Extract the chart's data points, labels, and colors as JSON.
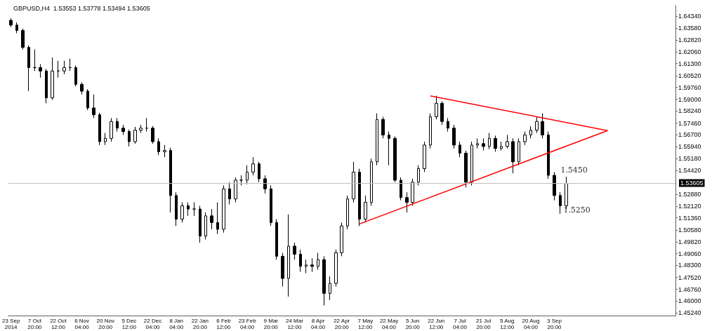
{
  "chart_data": {
    "type": "candlestick",
    "title": "GBPUSD,H4  1.53553 1.53778 1.53494 1.53605",
    "color": "#000000",
    "categories": [
      "23 Sep 2014",
      null,
      null,
      null,
      "7 Oct 20:00",
      null,
      null,
      null,
      "22 Oct 12:00",
      null,
      null,
      null,
      "6 Nov 04:00",
      null,
      null,
      null,
      "20 Nov 20:00",
      null,
      null,
      null,
      "5 Dec 12:00",
      null,
      null,
      null,
      "22 Dec 04:00",
      null,
      null,
      null,
      "8 Jan 04:00",
      null,
      null,
      null,
      "22 Jan 20:00",
      null,
      null,
      null,
      "6 Feb 12:00",
      null,
      null,
      null,
      "23 Feb 04:00",
      null,
      null,
      null,
      "9 Mar 20:00",
      null,
      null,
      null,
      "24 Mar 12:00",
      null,
      null,
      null,
      "8 Apr 04:00",
      null,
      null,
      null,
      "22 Apr 20:00",
      null,
      null,
      null,
      "7 May 12:00",
      null,
      null,
      null,
      "22 May 04:00",
      null,
      null,
      null,
      "5 Jun 20:00",
      null,
      null,
      null,
      "22 Jun 12:00",
      null,
      null,
      null,
      "7 Jul 04:00",
      null,
      null,
      null,
      "21 Jul 20:00",
      null,
      null,
      null,
      "5 Aug 12:00",
      null,
      null,
      null,
      "20 Aug 04:00",
      null,
      null,
      null,
      "3 Sep 20:00",
      null,
      null,
      null,
      null,
      null,
      null,
      null,
      null,
      null,
      null,
      null,
      null,
      null,
      null,
      null,
      null,
      null,
      null,
      null,
      null
    ],
    "ohlc": [
      [
        1.6408,
        1.6421,
        1.6365,
        1.6378
      ],
      [
        1.6378,
        1.6395,
        1.6325,
        1.6343
      ],
      [
        1.6343,
        1.6356,
        1.6221,
        1.6234
      ],
      [
        1.6234,
        1.6247,
        1.5952,
        1.6104
      ],
      [
        1.6104,
        1.6221,
        1.6082,
        1.6104
      ],
      [
        1.6104,
        1.6126,
        1.6039,
        1.6082
      ],
      [
        1.6082,
        1.6095,
        1.5874,
        1.5909
      ],
      [
        1.5909,
        1.6169,
        1.5896,
        1.6082
      ],
      [
        1.6082,
        1.6148,
        1.6039,
        1.6082
      ],
      [
        1.6082,
        1.6148,
        1.6061,
        1.6104
      ],
      [
        1.6104,
        1.6161,
        1.6082,
        1.6104
      ],
      [
        1.6104,
        1.6117,
        1.5983,
        1.5996
      ],
      [
        1.5996,
        1.6009,
        1.5931,
        1.5952
      ],
      [
        1.5952,
        1.5965,
        1.5831,
        1.5844
      ],
      [
        1.5844,
        1.5931,
        1.5779,
        1.58
      ],
      [
        1.58,
        1.5813,
        1.5605,
        1.5627
      ],
      [
        1.5627,
        1.5683,
        1.5605,
        1.5648
      ],
      [
        1.5648,
        1.5779,
        1.5627,
        1.5757
      ],
      [
        1.5757,
        1.5779,
        1.5692,
        1.5714
      ],
      [
        1.5714,
        1.5735,
        1.567,
        1.5692
      ],
      [
        1.5692,
        1.5705,
        1.5596,
        1.5627
      ],
      [
        1.5627,
        1.5722,
        1.5614,
        1.5701
      ],
      [
        1.5701,
        1.5735,
        1.5683,
        1.5714
      ],
      [
        1.5714,
        1.5779,
        1.5692,
        1.5714
      ],
      [
        1.5714,
        1.5727,
        1.5614,
        1.5627
      ],
      [
        1.5627,
        1.5648,
        1.554,
        1.5562
      ],
      [
        1.5562,
        1.5605,
        1.5527,
        1.557
      ],
      [
        1.557,
        1.5588,
        1.5171,
        1.528
      ],
      [
        1.528,
        1.5301,
        1.5084,
        1.5128
      ],
      [
        1.5128,
        1.5236,
        1.5106,
        1.5214
      ],
      [
        1.5214,
        1.5236,
        1.5149,
        1.5193
      ],
      [
        1.5193,
        1.5236,
        1.5149,
        1.5193
      ],
      [
        1.5193,
        1.5214,
        1.4976,
        1.5019
      ],
      [
        1.5019,
        1.5171,
        1.4997,
        1.5149
      ],
      [
        1.5149,
        1.5193,
        1.5063,
        1.5106
      ],
      [
        1.5106,
        1.5236,
        1.5032,
        1.5063
      ],
      [
        1.5063,
        1.5345,
        1.5041,
        1.5323
      ],
      [
        1.5323,
        1.5366,
        1.5223,
        1.5258
      ],
      [
        1.5258,
        1.5397,
        1.5236,
        1.5379
      ],
      [
        1.5379,
        1.541,
        1.5345,
        1.5379
      ],
      [
        1.5379,
        1.5475,
        1.5353,
        1.5431
      ],
      [
        1.5431,
        1.5527,
        1.541,
        1.5484
      ],
      [
        1.5484,
        1.5497,
        1.5366,
        1.5388
      ],
      [
        1.5388,
        1.541,
        1.5293,
        1.5323
      ],
      [
        1.5323,
        1.5345,
        1.5084,
        1.5106
      ],
      [
        1.5106,
        1.5128,
        1.4867,
        1.4889
      ],
      [
        1.4889,
        1.4911,
        1.4694,
        1.4746
      ],
      [
        1.4746,
        1.5158,
        1.4629,
        1.4954
      ],
      [
        1.4954,
        1.4976,
        1.4867,
        1.4902
      ],
      [
        1.4902,
        1.4932,
        1.4789,
        1.4824
      ],
      [
        1.4824,
        1.4867,
        1.478,
        1.4833
      ],
      [
        1.4833,
        1.4876,
        1.4789,
        1.4824
      ],
      [
        1.4824,
        1.4911,
        1.4802,
        1.4867
      ],
      [
        1.4867,
        1.4889,
        1.4572,
        1.465
      ],
      [
        1.465,
        1.4759,
        1.4607,
        1.4715
      ],
      [
        1.4715,
        1.4932,
        1.4694,
        1.4911
      ],
      [
        1.4911,
        1.5106,
        1.4889,
        1.5084
      ],
      [
        1.5084,
        1.528,
        1.5063,
        1.5258
      ],
      [
        1.5258,
        1.5497,
        1.5236,
        1.5431
      ],
      [
        1.5431,
        1.5453,
        1.5084,
        1.5128
      ],
      [
        1.5128,
        1.528,
        1.5106,
        1.5236
      ],
      [
        1.5236,
        1.5518,
        1.5214,
        1.5497
      ],
      [
        1.5497,
        1.5809,
        1.5475,
        1.577
      ],
      [
        1.577,
        1.5787,
        1.5648,
        1.567
      ],
      [
        1.567,
        1.5692,
        1.5475,
        1.5648
      ],
      [
        1.5648,
        1.5661,
        1.5366,
        1.5379
      ],
      [
        1.5379,
        1.5397,
        1.5249,
        1.5267
      ],
      [
        1.5267,
        1.5301,
        1.5171,
        1.5236
      ],
      [
        1.5236,
        1.5388,
        1.5214,
        1.5366
      ],
      [
        1.5366,
        1.5475,
        1.5345,
        1.5453
      ],
      [
        1.5453,
        1.5627,
        1.5431,
        1.5605
      ],
      [
        1.5605,
        1.5809,
        1.5583,
        1.5787
      ],
      [
        1.5787,
        1.5922,
        1.577,
        1.5874
      ],
      [
        1.5874,
        1.5887,
        1.5735,
        1.5757
      ],
      [
        1.5757,
        1.5779,
        1.5692,
        1.5714
      ],
      [
        1.5714,
        1.5735,
        1.5583,
        1.5605
      ],
      [
        1.5605,
        1.5627,
        1.5527,
        1.5553
      ],
      [
        1.5553,
        1.557,
        1.5332,
        1.5366
      ],
      [
        1.5366,
        1.5627,
        1.5345,
        1.5605
      ],
      [
        1.5605,
        1.5648,
        1.5583,
        1.5614
      ],
      [
        1.5614,
        1.5648,
        1.557,
        1.5596
      ],
      [
        1.5596,
        1.5683,
        1.5579,
        1.5648
      ],
      [
        1.5648,
        1.5666,
        1.5562,
        1.5583
      ],
      [
        1.5583,
        1.5627,
        1.557,
        1.5596
      ],
      [
        1.5596,
        1.567,
        1.5583,
        1.5627
      ],
      [
        1.5627,
        1.5648,
        1.5423,
        1.5497
      ],
      [
        1.5497,
        1.5648,
        1.5475,
        1.5627
      ],
      [
        1.5627,
        1.5692,
        1.5605,
        1.567
      ],
      [
        1.567,
        1.5727,
        1.5648,
        1.5701
      ],
      [
        1.5701,
        1.5787,
        1.5683,
        1.5757
      ],
      [
        1.5757,
        1.5809,
        1.5648,
        1.567
      ],
      [
        1.567,
        1.5692,
        1.5388,
        1.541
      ],
      [
        1.541,
        1.5431,
        1.5249,
        1.528
      ],
      [
        1.528,
        1.5301,
        1.5162,
        1.5214
      ],
      [
        1.5214,
        1.5401,
        1.5193,
        1.5358
      ],
      null,
      null,
      null,
      null,
      null,
      null,
      null,
      null,
      null,
      null,
      null,
      null,
      null,
      null,
      null,
      null,
      null,
      null
    ],
    "series": [
      {
        "type": "line",
        "color": "#ff0000",
        "values": [
          null,
          null,
          null,
          null,
          null,
          null,
          null,
          null,
          null,
          null,
          null,
          null,
          null,
          null,
          null,
          null,
          null,
          null,
          null,
          null,
          null,
          null,
          null,
          null,
          null,
          null,
          null,
          null,
          null,
          null,
          null,
          null,
          null,
          null,
          null,
          null,
          null,
          null,
          null,
          null,
          null,
          null,
          null,
          null,
          null,
          null,
          null,
          null,
          null,
          null,
          null,
          null,
          null,
          null,
          null,
          null,
          null,
          null,
          null,
          null,
          null,
          null,
          null,
          null,
          null,
          null,
          null,
          null,
          null,
          null,
          null,
          1.5922,
          null,
          null,
          null,
          null,
          null,
          null,
          null,
          null,
          null,
          null,
          null,
          null,
          null,
          null,
          null,
          null,
          null,
          null,
          null,
          null,
          null,
          null,
          null,
          null,
          null,
          null,
          null,
          null,
          null,
          1.5698,
          null,
          null,
          null,
          null,
          null,
          null,
          null,
          null,
          null,
          null,
          null
        ]
      },
      {
        "type": "line",
        "color": "#ff0000",
        "values": [
          null,
          null,
          null,
          null,
          null,
          null,
          null,
          null,
          null,
          null,
          null,
          null,
          null,
          null,
          null,
          null,
          null,
          null,
          null,
          null,
          null,
          null,
          null,
          null,
          null,
          null,
          null,
          null,
          null,
          null,
          null,
          null,
          null,
          null,
          null,
          null,
          null,
          null,
          null,
          null,
          null,
          null,
          null,
          null,
          null,
          null,
          null,
          null,
          null,
          null,
          null,
          null,
          null,
          null,
          null,
          null,
          null,
          null,
          null,
          1.5097,
          null,
          null,
          null,
          null,
          null,
          null,
          null,
          null,
          null,
          null,
          null,
          null,
          null,
          null,
          null,
          null,
          null,
          null,
          null,
          null,
          null,
          null,
          null,
          null,
          null,
          null,
          null,
          null,
          null,
          null,
          null,
          null,
          null,
          null,
          null,
          null,
          null,
          null,
          null,
          null,
          null,
          1.5698,
          null,
          null,
          null,
          null,
          null,
          null,
          null,
          null,
          null,
          null,
          null
        ]
      }
    ],
    "ylim": [
      1.4507,
      1.6503
    ],
    "yticks": [
      {
        "value": 1.6434,
        "label": "1.64340"
      },
      {
        "value": 1.6358,
        "label": "1.63580"
      },
      {
        "value": 1.6282,
        "label": "1.62820"
      },
      {
        "value": 1.6206,
        "label": "1.62060"
      },
      {
        "value": 1.613,
        "label": "1.61300"
      },
      {
        "value": 1.6052,
        "label": "1.60520"
      },
      {
        "value": 1.5976,
        "label": "1.59760"
      },
      {
        "value": 1.59,
        "label": "1.59000"
      },
      {
        "value": 1.5824,
        "label": "1.58240"
      },
      {
        "value": 1.5746,
        "label": "1.57460"
      },
      {
        "value": 1.567,
        "label": "1.56700"
      },
      {
        "value": 1.5594,
        "label": "1.55940"
      },
      {
        "value": 1.5518,
        "label": "1.55180"
      },
      {
        "value": 1.5442,
        "label": "1.54420"
      },
      {
        "value": 1.5288,
        "label": "1.52880"
      },
      {
        "value": 1.5212,
        "label": "1.52120"
      },
      {
        "value": 1.5136,
        "label": "1.51360"
      },
      {
        "value": 1.5058,
        "label": "1.50580"
      },
      {
        "value": 1.4982,
        "label": "1.49820"
      },
      {
        "value": 1.4906,
        "label": "1.49060"
      },
      {
        "value": 1.483,
        "label": "1.48300"
      },
      {
        "value": 1.4752,
        "label": "1.47520"
      },
      {
        "value": 1.4676,
        "label": "1.46760"
      },
      {
        "value": 1.46,
        "label": "1.46000"
      },
      {
        "value": 1.4524,
        "label": "1.45240"
      }
    ],
    "ref_lines": [
      {
        "axis": "y",
        "value": 1.53605,
        "label": "1.53605",
        "color": "#c0c0c0"
      }
    ],
    "annotations": [
      "1.5450",
      "1.5250"
    ]
  }
}
